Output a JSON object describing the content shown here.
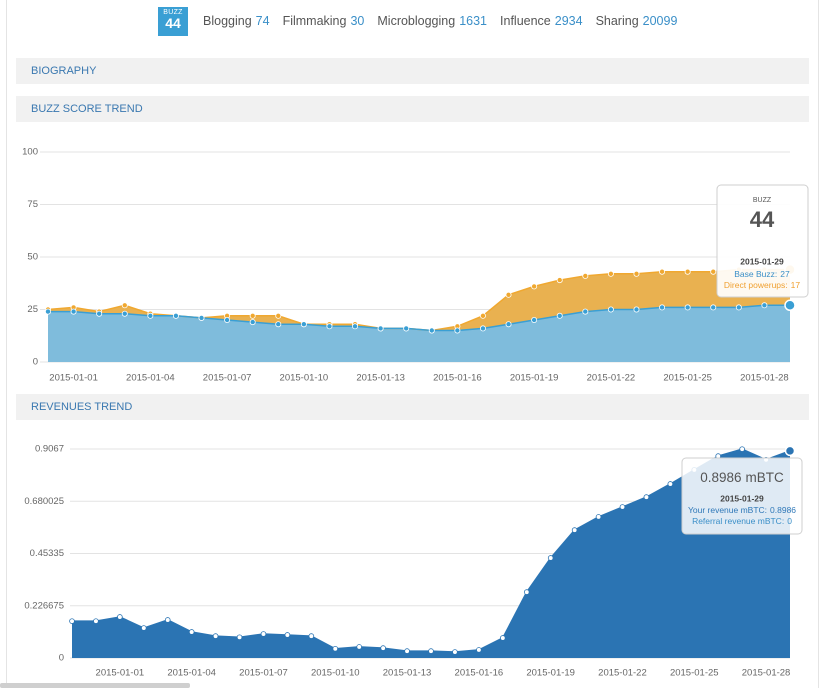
{
  "header": {
    "badge_label": "BUZZ",
    "badge_value": 44,
    "stats": [
      {
        "label": "Blogging",
        "value": 74
      },
      {
        "label": "Filmmaking",
        "value": 30
      },
      {
        "label": "Microblogging",
        "value": 1631
      },
      {
        "label": "Influence",
        "value": 2934
      },
      {
        "label": "Sharing",
        "value": 20099
      }
    ]
  },
  "sections": {
    "biography": "BIOGRAPHY",
    "buzz_trend": "BUZZ SCORE TREND",
    "revenue_trend": "REVENUES TREND"
  },
  "chart_data": [
    {
      "type": "area",
      "stacked": true,
      "categories": [
        null,
        "2015-01-01",
        null,
        null,
        "2015-01-04",
        null,
        null,
        "2015-01-07",
        null,
        null,
        "2015-01-10",
        null,
        null,
        "2015-01-13",
        null,
        null,
        "2015-01-16",
        null,
        null,
        "2015-01-19",
        null,
        null,
        "2015-01-22",
        null,
        null,
        "2015-01-25",
        null,
        null,
        "2015-01-28",
        null
      ],
      "series": [
        {
          "color": "#3a9fd4",
          "fill_color": "#7fbcdc",
          "values": [
            24,
            24,
            23,
            23,
            22,
            22,
            21,
            20,
            19,
            18,
            18,
            17,
            17,
            16,
            16,
            15,
            15,
            16,
            18,
            20,
            22,
            24,
            25,
            25,
            26,
            26,
            26,
            26,
            27,
            27
          ]
        },
        {
          "color": "#f0a830",
          "fill_color": "#e9b150",
          "values": [
            1,
            2,
            1,
            4,
            1,
            0,
            0,
            2,
            3,
            4,
            0,
            1,
            1,
            0,
            0,
            0,
            2,
            6,
            14,
            16,
            17,
            17,
            17,
            17,
            17,
            17,
            17,
            18,
            17,
            17
          ]
        }
      ],
      "ylim": [
        0,
        100
      ],
      "yticks": [
        0,
        25,
        50,
        75,
        100
      ],
      "grid": true,
      "tooltip": {
        "title": "BUZZ",
        "date": "2015-01-29",
        "base_label": "Base Buzz:",
        "powerups_label": "Direct powerups:"
      }
    },
    {
      "type": "area",
      "stacked": false,
      "categories": [
        null,
        null,
        "2015-01-01",
        null,
        null,
        "2015-01-04",
        null,
        null,
        "2015-01-07",
        null,
        null,
        "2015-01-10",
        null,
        null,
        "2015-01-13",
        null,
        null,
        "2015-01-16",
        null,
        null,
        "2015-01-19",
        null,
        null,
        "2015-01-22",
        null,
        null,
        "2015-01-25",
        null,
        null,
        "2015-01-28",
        null
      ],
      "series": [
        {
          "color": "#2b74b3",
          "fill_color": "#2b74b3",
          "marker_color": "#ffffff",
          "values": [
            0.16,
            0.16,
            0.178,
            0.13,
            0.165,
            0.113,
            0.095,
            0.09,
            0.104,
            0.1,
            0.095,
            0.04,
            0.048,
            0.043,
            0.03,
            0.03,
            0.026,
            0.035,
            0.087,
            0.286,
            0.434,
            0.555,
            0.612,
            0.655,
            0.698,
            0.755,
            0.816,
            0.876,
            0.906,
            0.86,
            0.8986
          ]
        }
      ],
      "ylim": [
        0,
        0.9067
      ],
      "yticks": [
        0,
        0.226675,
        0.45335,
        0.680025,
        0.9067
      ],
      "grid": true,
      "tooltip": {
        "unit": "mBTC",
        "date": "2015-01-29",
        "your_label": "Your revenue mBTC:",
        "referral_label": "Referral revenue mBTC:",
        "referral_value": 0
      }
    }
  ]
}
